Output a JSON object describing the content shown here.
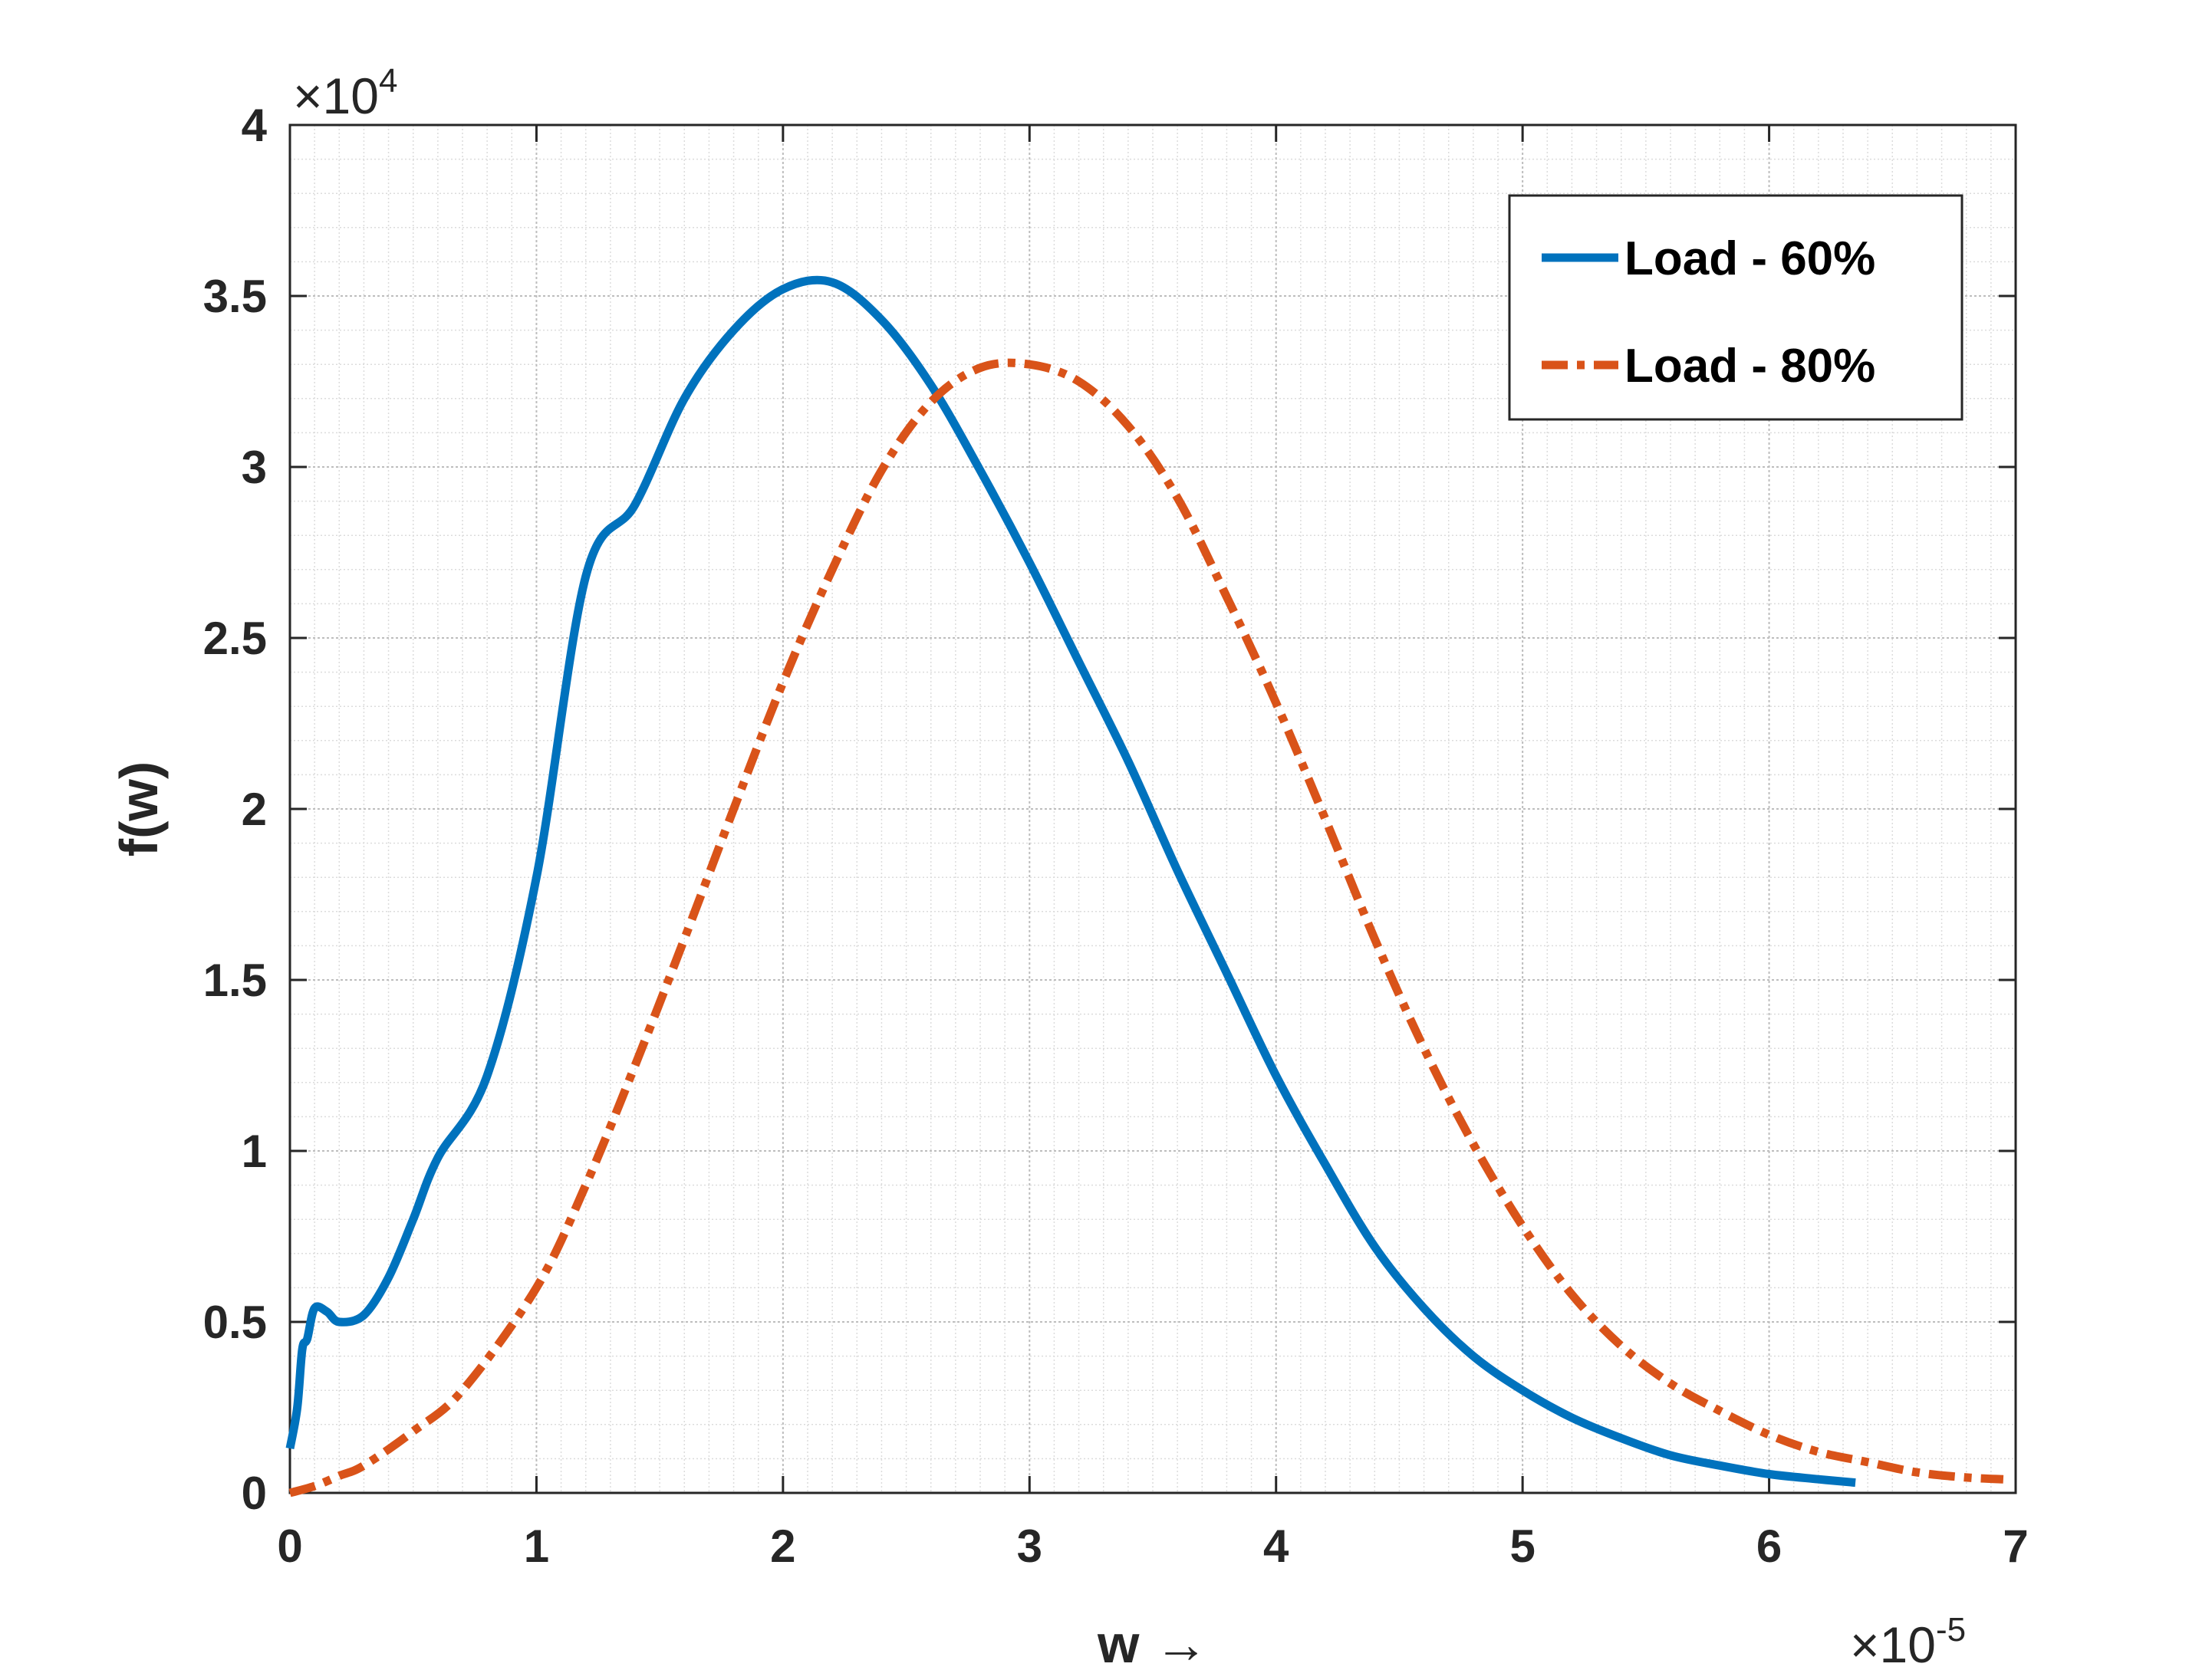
{
  "chart_data": {
    "type": "line",
    "title": "",
    "xlabel": "w →",
    "ylabel": "f(w)",
    "x_multiplier": "×10",
    "x_multiplier_exp": "-5",
    "y_multiplier": "×10",
    "y_multiplier_exp": "4",
    "xlim": [
      0,
      7
    ],
    "ylim": [
      0,
      4
    ],
    "x_ticks": [
      "0",
      "1",
      "2",
      "3",
      "4",
      "5",
      "6",
      "7"
    ],
    "y_ticks": [
      "0",
      "0.5",
      "1",
      "1.5",
      "2",
      "2.5",
      "3",
      "3.5",
      "4"
    ],
    "grid": "on (major and minor)",
    "legend_position": "top-right",
    "series": [
      {
        "name": "Load - 60%",
        "color": "#0072BD",
        "style": "solid",
        "x": [
          0,
          0.03,
          0.05,
          0.07,
          0.1,
          0.15,
          0.2,
          0.3,
          0.4,
          0.5,
          0.6,
          0.8,
          1.0,
          1.2,
          1.4,
          1.6,
          1.8,
          2.0,
          2.2,
          2.4,
          2.6,
          2.8,
          3.0,
          3.2,
          3.4,
          3.6,
          3.8,
          4.0,
          4.2,
          4.4,
          4.6,
          4.8,
          5.0,
          5.2,
          5.4,
          5.6,
          5.8,
          6.0,
          6.2,
          6.35
        ],
        "y": [
          0.13,
          0.25,
          0.42,
          0.45,
          0.54,
          0.53,
          0.5,
          0.52,
          0.63,
          0.8,
          0.98,
          1.22,
          1.8,
          2.68,
          2.89,
          3.2,
          3.4,
          3.52,
          3.54,
          3.43,
          3.24,
          2.99,
          2.72,
          2.43,
          2.14,
          1.82,
          1.52,
          1.22,
          0.96,
          0.72,
          0.54,
          0.4,
          0.3,
          0.22,
          0.16,
          0.11,
          0.08,
          0.055,
          0.04,
          0.03
        ]
      },
      {
        "name": "Load - 80%",
        "color": "#D95319",
        "style": "dash-dot",
        "x": [
          0,
          0.1,
          0.2,
          0.3,
          0.5,
          0.7,
          1.0,
          1.2,
          1.4,
          1.6,
          1.8,
          2.0,
          2.2,
          2.4,
          2.6,
          2.8,
          3.0,
          3.2,
          3.4,
          3.6,
          3.8,
          4.0,
          4.2,
          4.4,
          4.6,
          4.8,
          5.0,
          5.2,
          5.4,
          5.6,
          5.8,
          6.0,
          6.2,
          6.4,
          6.6,
          6.8,
          6.95
        ],
        "y": [
          0.0,
          0.02,
          0.05,
          0.08,
          0.18,
          0.3,
          0.6,
          0.9,
          1.25,
          1.62,
          2.0,
          2.37,
          2.7,
          2.99,
          3.19,
          3.29,
          3.3,
          3.25,
          3.12,
          2.91,
          2.62,
          2.31,
          1.97,
          1.62,
          1.3,
          1.02,
          0.78,
          0.58,
          0.43,
          0.32,
          0.24,
          0.17,
          0.12,
          0.09,
          0.06,
          0.045,
          0.04
        ]
      }
    ]
  }
}
